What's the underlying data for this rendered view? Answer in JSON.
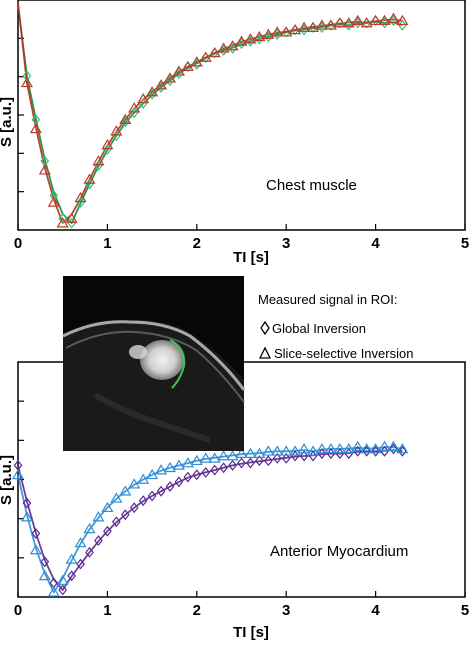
{
  "chart_data": [
    {
      "type": "scatter",
      "annotation": "Chest muscle",
      "xlabel": "TI [s]",
      "ylabel": "S [a.u.]",
      "xlim": [
        0,
        5
      ],
      "ylim": [
        0,
        1
      ],
      "xticks": [
        0,
        1,
        2,
        3,
        4,
        5
      ],
      "colors": {
        "global_marker": "#2ec27e",
        "slice_marker": "#c0392b",
        "fit_line_1": "#1a8a3a",
        "fit_line_2": "#b5301f"
      },
      "fit": {
        "s0": 1.02,
        "inv": 1.0,
        "t1": 0.87,
        "scale_end": 0.9
      },
      "series": [
        {
          "marker": "diamond",
          "x": [
            0.1,
            0.2,
            0.3,
            0.4,
            0.5,
            0.6,
            0.7,
            0.8,
            0.9,
            1.0,
            1.1,
            1.2,
            1.3,
            1.4,
            1.5,
            1.6,
            1.7,
            1.8,
            1.9,
            2.0,
            2.1,
            2.2,
            2.3,
            2.4,
            2.5,
            2.6,
            2.7,
            2.8,
            2.9,
            3.0,
            3.1,
            3.2,
            3.3,
            3.4,
            3.5,
            3.6,
            3.7,
            3.8,
            3.9,
            4.0,
            4.1,
            4.2,
            4.3
          ],
          "y": [
            0.67,
            0.48,
            0.3,
            0.15,
            0.05,
            0.03,
            0.12,
            0.2,
            0.28,
            0.35,
            0.41,
            0.47,
            0.51,
            0.55,
            0.59,
            0.62,
            0.65,
            0.68,
            0.71,
            0.72,
            0.75,
            0.77,
            0.78,
            0.79,
            0.81,
            0.82,
            0.83,
            0.84,
            0.85,
            0.86,
            0.87,
            0.87,
            0.88,
            0.88,
            0.89,
            0.9,
            0.89,
            0.9,
            0.9,
            0.91,
            0.9,
            0.91,
            0.89
          ]
        },
        {
          "marker": "triangle",
          "x": [
            0.1,
            0.2,
            0.3,
            0.4,
            0.5,
            0.6,
            0.7,
            0.8,
            0.9,
            1.0,
            1.1,
            1.2,
            1.3,
            1.4,
            1.5,
            1.6,
            1.7,
            1.8,
            1.9,
            2.0,
            2.1,
            2.2,
            2.3,
            2.4,
            2.5,
            2.6,
            2.7,
            2.8,
            2.9,
            3.0,
            3.1,
            3.2,
            3.3,
            3.4,
            3.5,
            3.6,
            3.7,
            3.8,
            3.9,
            4.0,
            4.1,
            4.2,
            4.3
          ],
          "y": [
            0.64,
            0.44,
            0.26,
            0.12,
            0.03,
            0.05,
            0.14,
            0.22,
            0.3,
            0.37,
            0.43,
            0.48,
            0.53,
            0.57,
            0.6,
            0.63,
            0.66,
            0.69,
            0.71,
            0.73,
            0.75,
            0.77,
            0.79,
            0.8,
            0.82,
            0.83,
            0.84,
            0.85,
            0.86,
            0.86,
            0.87,
            0.88,
            0.88,
            0.89,
            0.89,
            0.9,
            0.9,
            0.91,
            0.9,
            0.91,
            0.91,
            0.92,
            0.91
          ]
        }
      ]
    },
    {
      "type": "scatter",
      "annotation": "Anterior Myocardium",
      "xlabel": "TI [s]",
      "ylabel": "S [a.u.]",
      "xlim": [
        0,
        5
      ],
      "ylim": [
        0,
        1
      ],
      "xticks": [
        0,
        1,
        2,
        3,
        4,
        5
      ],
      "colors": {
        "global_marker": "#5b2a8f",
        "slice_marker": "#2e8fd6",
        "fit_line_1": "#5b2a8f",
        "fit_line_2": "#2e8fd6"
      },
      "series": [
        {
          "marker": "diamond",
          "x": [
            0.0,
            0.1,
            0.2,
            0.3,
            0.4,
            0.5,
            0.6,
            0.7,
            0.8,
            0.9,
            1.0,
            1.1,
            1.2,
            1.3,
            1.4,
            1.5,
            1.6,
            1.7,
            1.8,
            1.9,
            2.0,
            2.1,
            2.2,
            2.3,
            2.4,
            2.5,
            2.6,
            2.7,
            2.8,
            2.9,
            3.0,
            3.1,
            3.2,
            3.3,
            3.4,
            3.5,
            3.6,
            3.7,
            3.8,
            3.9,
            4.0,
            4.1,
            4.2,
            4.3
          ],
          "y": [
            0.56,
            0.4,
            0.27,
            0.15,
            0.06,
            0.03,
            0.09,
            0.14,
            0.19,
            0.24,
            0.28,
            0.32,
            0.35,
            0.38,
            0.41,
            0.43,
            0.45,
            0.47,
            0.49,
            0.51,
            0.52,
            0.53,
            0.54,
            0.55,
            0.56,
            0.57,
            0.57,
            0.58,
            0.58,
            0.59,
            0.59,
            0.6,
            0.6,
            0.6,
            0.61,
            0.61,
            0.61,
            0.61,
            0.62,
            0.62,
            0.62,
            0.62,
            0.63,
            0.62
          ]
        },
        {
          "marker": "triangle",
          "x": [
            0.0,
            0.1,
            0.2,
            0.3,
            0.4,
            0.5,
            0.6,
            0.7,
            0.8,
            0.9,
            1.0,
            1.1,
            1.2,
            1.3,
            1.4,
            1.5,
            1.6,
            1.7,
            1.8,
            1.9,
            2.0,
            2.1,
            2.2,
            2.3,
            2.4,
            2.5,
            2.6,
            2.7,
            2.8,
            2.9,
            3.0,
            3.1,
            3.2,
            3.3,
            3.4,
            3.5,
            3.6,
            3.7,
            3.8,
            3.9,
            4.0,
            4.1,
            4.2,
            4.3
          ],
          "y": [
            0.52,
            0.34,
            0.2,
            0.09,
            0.02,
            0.07,
            0.16,
            0.23,
            0.29,
            0.34,
            0.38,
            0.42,
            0.45,
            0.48,
            0.5,
            0.52,
            0.54,
            0.55,
            0.56,
            0.57,
            0.58,
            0.59,
            0.59,
            0.6,
            0.6,
            0.61,
            0.61,
            0.61,
            0.62,
            0.62,
            0.62,
            0.62,
            0.63,
            0.62,
            0.63,
            0.63,
            0.63,
            0.63,
            0.64,
            0.63,
            0.63,
            0.64,
            0.64,
            0.63
          ]
        }
      ]
    }
  ],
  "legend": {
    "title": "Measured signal in ROI:",
    "items": [
      {
        "symbol": "diamond",
        "label": "Global Inversion"
      },
      {
        "symbol": "triangle",
        "label": "Slice-selective Inversion"
      }
    ]
  },
  "image_inset": {
    "description_visible": "MRI axial slice with ROI contour",
    "roi_color": "#3cc85a"
  }
}
